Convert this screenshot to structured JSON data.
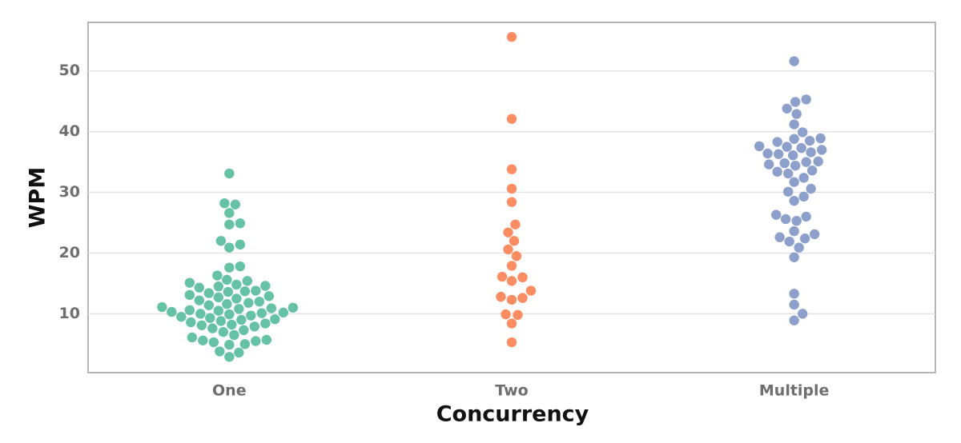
{
  "chart_data": {
    "type": "swarm",
    "categories": [
      "One",
      "Two",
      "Multiple"
    ],
    "xlabel": "Concurrency",
    "ylabel": "WPM",
    "ylim": [
      0.3,
      58
    ],
    "yticks": [
      10,
      20,
      30,
      40,
      50
    ],
    "grid": true,
    "groups": [
      {
        "color": "#66c2a5",
        "values": [
          33.1,
          28.2,
          28.0,
          26.6,
          24.9,
          24.7,
          22.0,
          21.4,
          20.9,
          17.8,
          17.6,
          16.3,
          15.6,
          15.4,
          15.1,
          14.8,
          14.6,
          14.5,
          14.3,
          13.8,
          13.7,
          13.6,
          13.4,
          13.1,
          12.9,
          12.7,
          12.5,
          12.2,
          12.0,
          11.8,
          11.6,
          11.4,
          11.1,
          11.0,
          10.9,
          10.8,
          10.6,
          10.5,
          10.3,
          10.2,
          10.1,
          10.0,
          9.9,
          9.7,
          9.5,
          9.3,
          9.1,
          9.0,
          8.8,
          8.6,
          8.4,
          8.2,
          8.1,
          7.9,
          7.6,
          7.3,
          7.0,
          6.5,
          6.1,
          5.7,
          5.6,
          5.5,
          5.3,
          5.0,
          4.9,
          3.8,
          3.6,
          2.9
        ]
      },
      {
        "color": "#fc8d62",
        "values": [
          55.6,
          42.1,
          33.8,
          30.6,
          28.4,
          24.7,
          23.4,
          22.0,
          20.6,
          19.5,
          17.9,
          16.1,
          16.0,
          15.4,
          13.8,
          12.8,
          12.6,
          12.3,
          9.9,
          9.8,
          8.4,
          5.3
        ]
      },
      {
        "color": "#8da0cb",
        "values": [
          51.6,
          45.3,
          44.9,
          43.8,
          42.9,
          41.2,
          39.9,
          38.9,
          38.8,
          38.5,
          38.3,
          37.6,
          37.5,
          37.3,
          37.0,
          36.6,
          36.4,
          36.3,
          36.1,
          35.1,
          35.0,
          34.8,
          34.6,
          34.4,
          33.6,
          33.4,
          33.1,
          32.4,
          31.7,
          30.6,
          30.1,
          29.3,
          28.6,
          26.3,
          26.0,
          25.6,
          25.3,
          23.6,
          23.1,
          22.6,
          22.4,
          21.9,
          20.9,
          19.3,
          13.3,
          11.5,
          10.0,
          8.9
        ]
      }
    ]
  }
}
